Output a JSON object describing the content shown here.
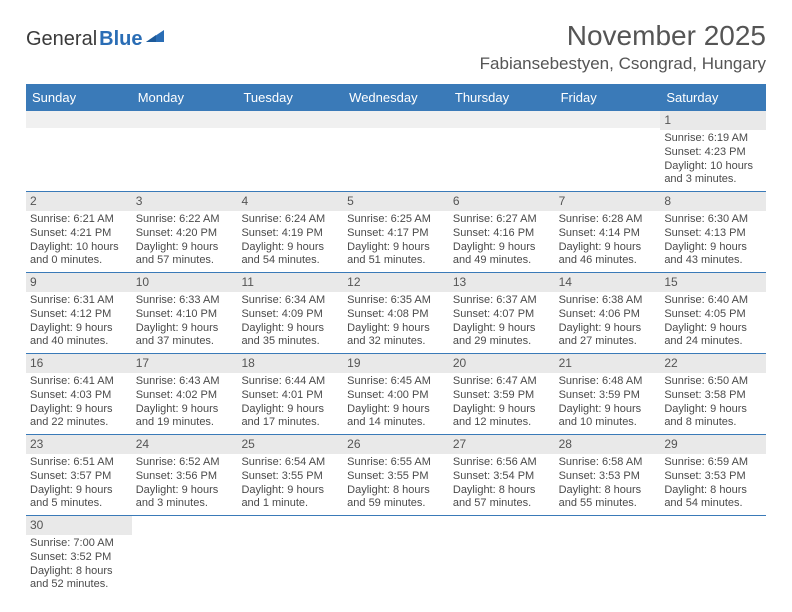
{
  "header": {
    "logo_general": "General",
    "logo_blue": "Blue",
    "month_title": "November 2025",
    "location": "Fabiansebestyen, Csongrad, Hungary"
  },
  "colors": {
    "header_bg": "#3a7ab8",
    "header_text": "#ffffff",
    "daynum_bg": "#e9e9e9",
    "week_border": "#3a7ab8",
    "text": "#4a4a4a",
    "logo_blue": "#2a6db5"
  },
  "day_names": [
    "Sunday",
    "Monday",
    "Tuesday",
    "Wednesday",
    "Thursday",
    "Friday",
    "Saturday"
  ],
  "weeks": [
    [
      {
        "empty": true
      },
      {
        "empty": true
      },
      {
        "empty": true
      },
      {
        "empty": true
      },
      {
        "empty": true
      },
      {
        "empty": true
      },
      {
        "day": "1",
        "sunrise": "Sunrise: 6:19 AM",
        "sunset": "Sunset: 4:23 PM",
        "day1": "Daylight: 10 hours",
        "day2": "and 3 minutes."
      }
    ],
    [
      {
        "day": "2",
        "sunrise": "Sunrise: 6:21 AM",
        "sunset": "Sunset: 4:21 PM",
        "day1": "Daylight: 10 hours",
        "day2": "and 0 minutes."
      },
      {
        "day": "3",
        "sunrise": "Sunrise: 6:22 AM",
        "sunset": "Sunset: 4:20 PM",
        "day1": "Daylight: 9 hours",
        "day2": "and 57 minutes."
      },
      {
        "day": "4",
        "sunrise": "Sunrise: 6:24 AM",
        "sunset": "Sunset: 4:19 PM",
        "day1": "Daylight: 9 hours",
        "day2": "and 54 minutes."
      },
      {
        "day": "5",
        "sunrise": "Sunrise: 6:25 AM",
        "sunset": "Sunset: 4:17 PM",
        "day1": "Daylight: 9 hours",
        "day2": "and 51 minutes."
      },
      {
        "day": "6",
        "sunrise": "Sunrise: 6:27 AM",
        "sunset": "Sunset: 4:16 PM",
        "day1": "Daylight: 9 hours",
        "day2": "and 49 minutes."
      },
      {
        "day": "7",
        "sunrise": "Sunrise: 6:28 AM",
        "sunset": "Sunset: 4:14 PM",
        "day1": "Daylight: 9 hours",
        "day2": "and 46 minutes."
      },
      {
        "day": "8",
        "sunrise": "Sunrise: 6:30 AM",
        "sunset": "Sunset: 4:13 PM",
        "day1": "Daylight: 9 hours",
        "day2": "and 43 minutes."
      }
    ],
    [
      {
        "day": "9",
        "sunrise": "Sunrise: 6:31 AM",
        "sunset": "Sunset: 4:12 PM",
        "day1": "Daylight: 9 hours",
        "day2": "and 40 minutes."
      },
      {
        "day": "10",
        "sunrise": "Sunrise: 6:33 AM",
        "sunset": "Sunset: 4:10 PM",
        "day1": "Daylight: 9 hours",
        "day2": "and 37 minutes."
      },
      {
        "day": "11",
        "sunrise": "Sunrise: 6:34 AM",
        "sunset": "Sunset: 4:09 PM",
        "day1": "Daylight: 9 hours",
        "day2": "and 35 minutes."
      },
      {
        "day": "12",
        "sunrise": "Sunrise: 6:35 AM",
        "sunset": "Sunset: 4:08 PM",
        "day1": "Daylight: 9 hours",
        "day2": "and 32 minutes."
      },
      {
        "day": "13",
        "sunrise": "Sunrise: 6:37 AM",
        "sunset": "Sunset: 4:07 PM",
        "day1": "Daylight: 9 hours",
        "day2": "and 29 minutes."
      },
      {
        "day": "14",
        "sunrise": "Sunrise: 6:38 AM",
        "sunset": "Sunset: 4:06 PM",
        "day1": "Daylight: 9 hours",
        "day2": "and 27 minutes."
      },
      {
        "day": "15",
        "sunrise": "Sunrise: 6:40 AM",
        "sunset": "Sunset: 4:05 PM",
        "day1": "Daylight: 9 hours",
        "day2": "and 24 minutes."
      }
    ],
    [
      {
        "day": "16",
        "sunrise": "Sunrise: 6:41 AM",
        "sunset": "Sunset: 4:03 PM",
        "day1": "Daylight: 9 hours",
        "day2": "and 22 minutes."
      },
      {
        "day": "17",
        "sunrise": "Sunrise: 6:43 AM",
        "sunset": "Sunset: 4:02 PM",
        "day1": "Daylight: 9 hours",
        "day2": "and 19 minutes."
      },
      {
        "day": "18",
        "sunrise": "Sunrise: 6:44 AM",
        "sunset": "Sunset: 4:01 PM",
        "day1": "Daylight: 9 hours",
        "day2": "and 17 minutes."
      },
      {
        "day": "19",
        "sunrise": "Sunrise: 6:45 AM",
        "sunset": "Sunset: 4:00 PM",
        "day1": "Daylight: 9 hours",
        "day2": "and 14 minutes."
      },
      {
        "day": "20",
        "sunrise": "Sunrise: 6:47 AM",
        "sunset": "Sunset: 3:59 PM",
        "day1": "Daylight: 9 hours",
        "day2": "and 12 minutes."
      },
      {
        "day": "21",
        "sunrise": "Sunrise: 6:48 AM",
        "sunset": "Sunset: 3:59 PM",
        "day1": "Daylight: 9 hours",
        "day2": "and 10 minutes."
      },
      {
        "day": "22",
        "sunrise": "Sunrise: 6:50 AM",
        "sunset": "Sunset: 3:58 PM",
        "day1": "Daylight: 9 hours",
        "day2": "and 8 minutes."
      }
    ],
    [
      {
        "day": "23",
        "sunrise": "Sunrise: 6:51 AM",
        "sunset": "Sunset: 3:57 PM",
        "day1": "Daylight: 9 hours",
        "day2": "and 5 minutes."
      },
      {
        "day": "24",
        "sunrise": "Sunrise: 6:52 AM",
        "sunset": "Sunset: 3:56 PM",
        "day1": "Daylight: 9 hours",
        "day2": "and 3 minutes."
      },
      {
        "day": "25",
        "sunrise": "Sunrise: 6:54 AM",
        "sunset": "Sunset: 3:55 PM",
        "day1": "Daylight: 9 hours",
        "day2": "and 1 minute."
      },
      {
        "day": "26",
        "sunrise": "Sunrise: 6:55 AM",
        "sunset": "Sunset: 3:55 PM",
        "day1": "Daylight: 8 hours",
        "day2": "and 59 minutes."
      },
      {
        "day": "27",
        "sunrise": "Sunrise: 6:56 AM",
        "sunset": "Sunset: 3:54 PM",
        "day1": "Daylight: 8 hours",
        "day2": "and 57 minutes."
      },
      {
        "day": "28",
        "sunrise": "Sunrise: 6:58 AM",
        "sunset": "Sunset: 3:53 PM",
        "day1": "Daylight: 8 hours",
        "day2": "and 55 minutes."
      },
      {
        "day": "29",
        "sunrise": "Sunrise: 6:59 AM",
        "sunset": "Sunset: 3:53 PM",
        "day1": "Daylight: 8 hours",
        "day2": "and 54 minutes."
      }
    ],
    [
      {
        "day": "30",
        "sunrise": "Sunrise: 7:00 AM",
        "sunset": "Sunset: 3:52 PM",
        "day1": "Daylight: 8 hours",
        "day2": "and 52 minutes."
      },
      {
        "empty": true
      },
      {
        "empty": true
      },
      {
        "empty": true
      },
      {
        "empty": true
      },
      {
        "empty": true
      },
      {
        "empty": true
      }
    ]
  ]
}
